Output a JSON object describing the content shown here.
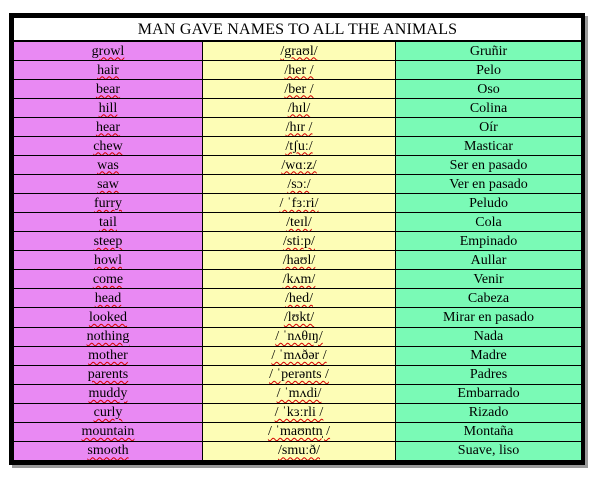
{
  "title": "MAN GAVE NAMES TO ALL THE ANIMALS",
  "colors": {
    "word_column": "#e989f3",
    "ipa_column": "#fdfdb6",
    "spanish_column": "#7afab6",
    "spell_underline": "#d40000"
  },
  "rows": [
    {
      "word": "growl",
      "ipa": "/graʊl/",
      "spanish": "Gruñir"
    },
    {
      "word": "hair",
      "ipa": "/her /",
      "spanish": "Pelo"
    },
    {
      "word": "bear",
      "ipa": "/ber /",
      "spanish": "Oso"
    },
    {
      "word": "hill",
      "ipa": "/hɪl/",
      "spanish": "Colina"
    },
    {
      "word": "hear",
      "ipa": "/hɪr /",
      "spanish": "Oír"
    },
    {
      "word": "chew",
      "ipa": "/tʃuː/",
      "spanish": "Masticar"
    },
    {
      "word": "was",
      "ipa": "/wɑːz/",
      "spanish": "Ser en pasado"
    },
    {
      "word": "saw",
      "ipa": "/sɔː/",
      "spanish": "Ver en pasado"
    },
    {
      "word": "furry",
      "ipa": "/ ˈfɜːri/",
      "spanish": "Peludo"
    },
    {
      "word": "tail",
      "ipa": "/teɪl/",
      "spanish": "Cola"
    },
    {
      "word": "steep",
      "ipa": "/stiːp/",
      "spanish": "Empinado"
    },
    {
      "word": "howl",
      "ipa": "/haʊl/",
      "spanish": "Aullar"
    },
    {
      "word": "come",
      "ipa": "/kʌm/",
      "spanish": "Venir"
    },
    {
      "word": "head",
      "ipa": "/hed/",
      "spanish": "Cabeza"
    },
    {
      "word": "looked",
      "ipa": "/lʊkt/",
      "spanish": "Mirar en pasado"
    },
    {
      "word": "nothing",
      "ipa": "/ ˈnʌθɪŋ/",
      "spanish": "Nada"
    },
    {
      "word": "mother",
      "ipa": "/ ˈmʌðər /",
      "spanish": "Madre"
    },
    {
      "word": "parents",
      "ipa": "/ ˈperənts /",
      "spanish": "Padres"
    },
    {
      "word": "muddy",
      "ipa": "/ ˈmʌdi/",
      "spanish": "Embarrado"
    },
    {
      "word": "curly",
      "ipa": "/ ˈkɜːrli /",
      "spanish": "Rizado"
    },
    {
      "word": "mountain",
      "ipa": "/ ˈmaʊntn̩ /",
      "spanish": "Montaña"
    },
    {
      "word": "smooth",
      "ipa": "/smuːð/",
      "spanish": "Suave, liso"
    }
  ]
}
